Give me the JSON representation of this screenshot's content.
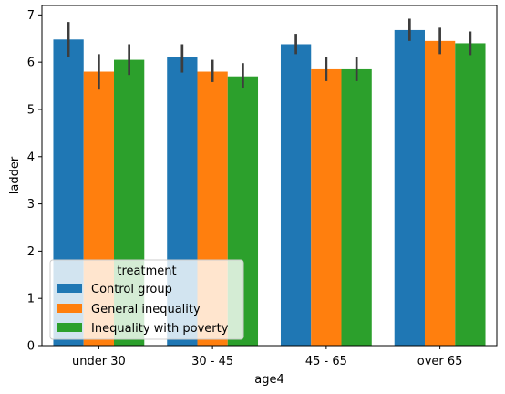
{
  "chart_data": {
    "type": "bar",
    "title": "",
    "xlabel": "age4",
    "ylabel": "ladder",
    "categories": [
      "under 30",
      "30 - 45",
      "45 - 65",
      "over 65"
    ],
    "ylim": [
      0,
      7.2
    ],
    "yticks": [
      "0",
      "1",
      "2",
      "3",
      "4",
      "5",
      "6",
      "7"
    ],
    "grid": false,
    "legend": {
      "title": "treatment",
      "placement": "lower-left"
    },
    "series": [
      {
        "name": "Control group",
        "color": "#1f77b4",
        "values": [
          6.48,
          6.1,
          6.38,
          6.68
        ],
        "err_low": [
          6.1,
          5.78,
          6.17,
          6.45
        ],
        "err_high": [
          6.85,
          6.38,
          6.6,
          6.92
        ]
      },
      {
        "name": "General inequality",
        "color": "#ff7f0e",
        "values": [
          5.8,
          5.8,
          5.85,
          6.45
        ],
        "err_low": [
          5.42,
          5.58,
          5.6,
          6.17
        ],
        "err_high": [
          6.17,
          6.05,
          6.1,
          6.73
        ]
      },
      {
        "name": "Inequality with poverty",
        "color": "#2ca02c",
        "values": [
          6.05,
          5.7,
          5.85,
          6.4
        ],
        "err_low": [
          5.73,
          5.45,
          5.6,
          6.15
        ],
        "err_high": [
          6.38,
          5.98,
          6.1,
          6.65
        ]
      }
    ],
    "error_bar_color": "#3d3d3d"
  }
}
